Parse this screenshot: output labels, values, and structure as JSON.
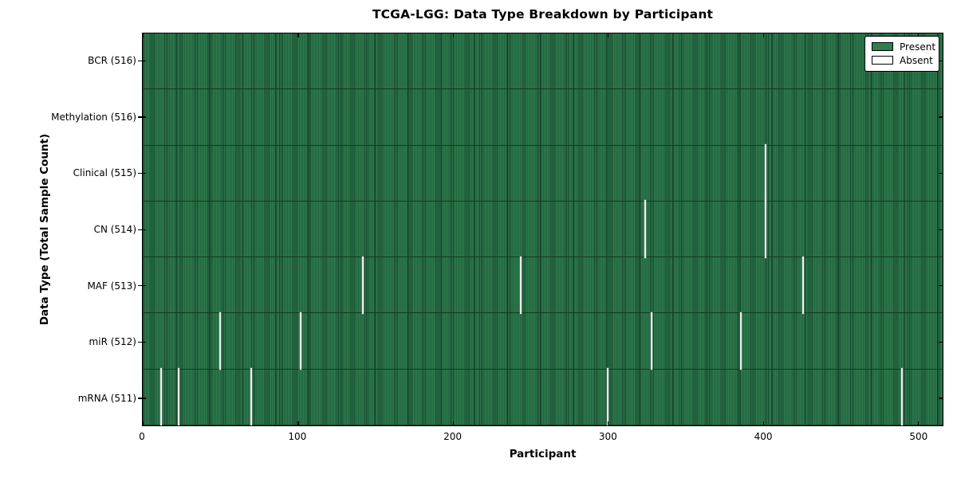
{
  "figure": {
    "background": "#ffffff"
  },
  "chart_data": {
    "type": "heatmap",
    "title": "TCGA-LGG: Data Type Breakdown by Participant",
    "xlabel": "Participant",
    "ylabel": "Data Type (Total Sample Count)",
    "n_participants": 516,
    "x_range": [
      0,
      516
    ],
    "x_ticks": [
      0,
      100,
      200,
      300,
      400,
      500
    ],
    "grid": false,
    "present_color": "#2f7e50",
    "absent_color": "#ffffff",
    "legend": {
      "position": "upper right",
      "items": [
        {
          "label": "Present",
          "color": "#2f7e50"
        },
        {
          "label": "Absent",
          "color": "#ffffff"
        }
      ]
    },
    "rows": [
      {
        "label": "BCR (516)",
        "data_type": "BCR",
        "total": 516,
        "absent_participants": []
      },
      {
        "label": "Methylation (516)",
        "data_type": "Methylation",
        "total": 516,
        "absent_participants": []
      },
      {
        "label": "Clinical (515)",
        "data_type": "Clinical",
        "total": 515,
        "absent_participants": [
          402
        ]
      },
      {
        "label": "CN (514)",
        "data_type": "CN",
        "total": 514,
        "absent_participants": [
          324,
          402
        ]
      },
      {
        "label": "MAF (513)",
        "data_type": "MAF",
        "total": 513,
        "absent_participants": [
          142,
          244,
          426
        ]
      },
      {
        "label": "miR (512)",
        "data_type": "miR",
        "total": 512,
        "absent_participants": [
          50,
          102,
          328,
          386
        ]
      },
      {
        "label": "mRNA (511)",
        "data_type": "mRNA",
        "total": 511,
        "absent_participants": [
          12,
          23,
          70,
          300,
          490
        ]
      }
    ]
  }
}
